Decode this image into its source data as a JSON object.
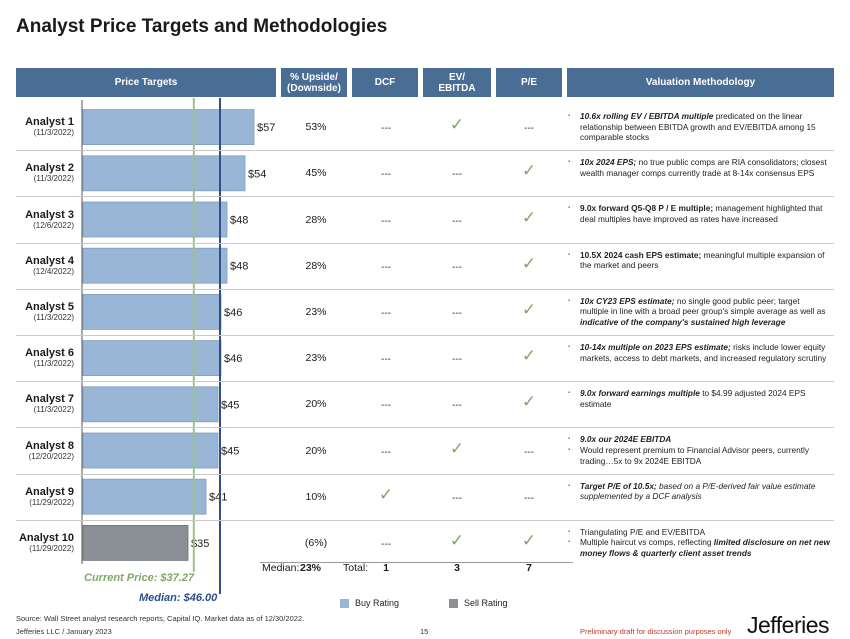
{
  "title": "Analyst Price Targets and Methodologies",
  "headers": {
    "price_targets": "Price Targets",
    "upside": "% Upside/ (Downside)",
    "dcf": "DCF",
    "ev_ebitda": "EV/ EBITDA",
    "pe": "P/E",
    "methodology": "Valuation Methodology"
  },
  "colors": {
    "buy": "#9ab6d6",
    "sell": "#8b9096",
    "header": "#4a6d95",
    "current_line": "#9dc08a",
    "median_line": "#2f4f86",
    "check": "#7fa86a"
  },
  "chart_data": {
    "type": "bar",
    "orientation": "horizontal",
    "title": "Price Targets",
    "categories": [
      "Analyst 1",
      "Analyst 2",
      "Analyst 3",
      "Analyst 4",
      "Analyst 5",
      "Analyst 6",
      "Analyst 7",
      "Analyst 8",
      "Analyst 9",
      "Analyst 10"
    ],
    "values": [
      57,
      54,
      48,
      48,
      46,
      46,
      45,
      45,
      41,
      35
    ],
    "ratings": [
      "Buy",
      "Buy",
      "Buy",
      "Buy",
      "Buy",
      "Buy",
      "Buy",
      "Buy",
      "Buy",
      "Sell"
    ],
    "value_labels": [
      "$57",
      "$54",
      "$48",
      "$48",
      "$46",
      "$46",
      "$45",
      "$45",
      "$41",
      "$35"
    ],
    "xlim": [
      0,
      60
    ],
    "reference_lines": [
      {
        "name": "Current Price",
        "value": 37.27,
        "label": "Current Price: $37.27"
      },
      {
        "name": "Median",
        "value": 46.0,
        "label": "Median: $46.00"
      }
    ],
    "legend": [
      "Buy Rating",
      "Sell Rating"
    ]
  },
  "analysts": [
    {
      "name": "Analyst 1",
      "date": "(11/3/2022)",
      "upside": "53%",
      "dcf": false,
      "ev": true,
      "pe": false
    },
    {
      "name": "Analyst 2",
      "date": "(11/3/2022)",
      "upside": "45%",
      "dcf": false,
      "ev": false,
      "pe": true
    },
    {
      "name": "Analyst 3",
      "date": "(12/6/2022)",
      "upside": "28%",
      "dcf": false,
      "ev": false,
      "pe": true
    },
    {
      "name": "Analyst 4",
      "date": "(12/4/2022)",
      "upside": "28%",
      "dcf": false,
      "ev": false,
      "pe": true
    },
    {
      "name": "Analyst 5",
      "date": "(11/3/2022)",
      "upside": "23%",
      "dcf": false,
      "ev": false,
      "pe": true
    },
    {
      "name": "Analyst 6",
      "date": "(11/3/2022)",
      "upside": "23%",
      "dcf": false,
      "ev": false,
      "pe": true
    },
    {
      "name": "Analyst 7",
      "date": "(11/3/2022)",
      "upside": "20%",
      "dcf": false,
      "ev": false,
      "pe": true
    },
    {
      "name": "Analyst 8",
      "date": "(12/20/2022)",
      "upside": "20%",
      "dcf": false,
      "ev": true,
      "pe": false
    },
    {
      "name": "Analyst 9",
      "date": "(11/29/2022)",
      "upside": "10%",
      "dcf": true,
      "ev": false,
      "pe": false
    },
    {
      "name": "Analyst 10",
      "date": "(11/29/2022)",
      "upside": "(6%)",
      "dcf": false,
      "ev": true,
      "pe": true
    }
  ],
  "dash": "---",
  "check_glyph": "✓",
  "methodologies": [
    [
      [
        [
          "10.6x rolling EV / EBITDA multiple",
          "bi"
        ],
        [
          " predicated on the linear relationship between EBITDA growth and EV/EBITDA among 15 comparable stocks",
          ""
        ]
      ]
    ],
    [
      [
        [
          "10x 2024 EPS;",
          "bi"
        ],
        [
          " no true public comps are RIA consolidators; closest wealth manager comps currently trade at 8-14x consensus EPS",
          ""
        ]
      ]
    ],
    [
      [
        [
          "9.0x forward Q5-Q8 P / E multiple;",
          "b"
        ],
        [
          " management highlighted that deal multiples have improved as rates have increased",
          ""
        ]
      ]
    ],
    [
      [
        [
          "10.5X 2024 cash EPS estimate;",
          "b"
        ],
        [
          " meaningful multiple expansion of the market and peers",
          ""
        ]
      ]
    ],
    [
      [
        [
          "10x CY23 EPS estimate;",
          "bi"
        ],
        [
          " no single good public peer; target multiple in line with a broad peer group's simple average as well as ",
          ""
        ],
        [
          "indicative of the company's sustained high leverage",
          "bi"
        ]
      ]
    ],
    [
      [
        [
          "10-14x multiple on 2023 EPS estimate;",
          "bi"
        ],
        [
          " risks include lower equity markets, access to debt markets, and increased regulatory scrutiny",
          ""
        ]
      ]
    ],
    [
      [
        [
          "9.0x forward earnings multiple",
          "bi"
        ],
        [
          " to $4.99 adjusted 2024 EPS estimate",
          ""
        ]
      ]
    ],
    [
      [
        [
          "9.0x our 2024E EBITDA",
          "bi"
        ]
      ],
      [
        [
          "Would represent ",
          ""
        ],
        [
          "premium to Financial Advisor peers",
          ""
        ],
        [
          ", currently trading…5x to 9x 2024E EBITDA",
          ""
        ]
      ]
    ],
    [
      [
        [
          "Target P/E of 10.5x;",
          "bi"
        ],
        [
          " based on a P/E-derived fair value estimate supplemented by a DCF analysis",
          "i"
        ]
      ]
    ],
    [
      [
        [
          "Triangulating P/E and EV/EBITDA",
          ""
        ]
      ],
      [
        [
          "Multiple ",
          ""
        ],
        [
          "haircut vs comps",
          ""
        ],
        [
          ", reflecting ",
          ""
        ],
        [
          "limited disclosure on net new money flows & quarterly client asset trends",
          "bi"
        ]
      ]
    ]
  ],
  "summary": {
    "median_label": "Median:",
    "median_value": "23%",
    "total_label": "Total:",
    "dcf_total": "1",
    "ev_total": "3",
    "pe_total": "7"
  },
  "footer": {
    "source": "Source: Wall Street analyst research reports, Capital IQ. Market data as of 12/30/2022.",
    "company": "Jefferies LLC / January 2023",
    "page": "15",
    "draft": "Preliminary draft for discussion purposes only",
    "logo": "Jefferies"
  }
}
